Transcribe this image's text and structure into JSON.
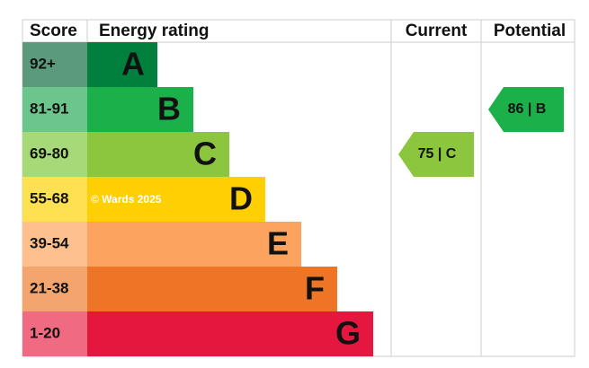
{
  "header": {
    "score": "Score",
    "rating": "Energy rating",
    "current": "Current",
    "potential": "Potential"
  },
  "bands": [
    {
      "score": "92+",
      "letter": "A",
      "bar_color": "#007f3d",
      "score_color": "#5b9b7c"
    },
    {
      "score": "81-91",
      "letter": "B",
      "bar_color": "#1bb04a",
      "score_color": "#6cc58a"
    },
    {
      "score": "69-80",
      "letter": "C",
      "bar_color": "#8cc63e",
      "score_color": "#a8d978"
    },
    {
      "score": "55-68",
      "letter": "D",
      "bar_color": "#fecf02",
      "score_color": "#ffe050"
    },
    {
      "score": "39-54",
      "letter": "E",
      "bar_color": "#fba35f",
      "score_color": "#fec08f"
    },
    {
      "score": "21-38",
      "letter": "F",
      "bar_color": "#ee7526",
      "score_color": "#f4a46d"
    },
    {
      "score": "1-20",
      "letter": "G",
      "bar_color": "#e5173f",
      "score_color": "#f06a82"
    }
  ],
  "watermark": "© Wards 2025",
  "current": {
    "label": "75 | C",
    "color": "#8cc63e"
  },
  "potential": {
    "label": "86 | B",
    "color": "#1bb04a"
  }
}
